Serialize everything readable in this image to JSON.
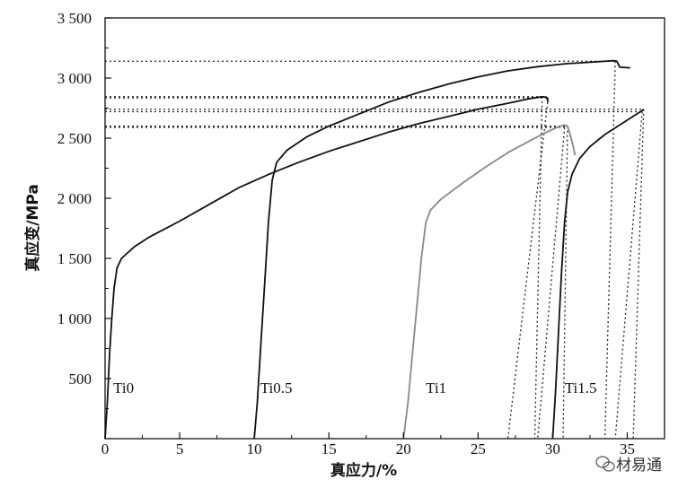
{
  "chart_data": {
    "type": "line",
    "title": "",
    "xlabel": "真应力/%",
    "ylabel": "真应变/MPa",
    "xlim": [
      0,
      37.5
    ],
    "ylim": [
      0,
      3500
    ],
    "x_ticks": [
      0,
      5,
      10,
      15,
      20,
      25,
      30,
      35
    ],
    "x_tick_labels": [
      "0",
      "5",
      "10",
      "15",
      "20",
      "25",
      "30",
      "35"
    ],
    "y_ticks": [
      500,
      1000,
      1500,
      2000,
      2500,
      3000,
      3500
    ],
    "y_tick_labels": [
      "500",
      "1 000",
      "1 500",
      "2 000",
      "2 500",
      "3 000",
      "3 500"
    ],
    "grid": false,
    "series": [
      {
        "name": "Ti0",
        "color": "#111111",
        "label_at": [
          0.55,
          380
        ],
        "points": [
          [
            0,
            0
          ],
          [
            0.15,
            300
          ],
          [
            0.3,
            700
          ],
          [
            0.45,
            1000
          ],
          [
            0.6,
            1250
          ],
          [
            0.8,
            1420
          ],
          [
            1.1,
            1500
          ],
          [
            2,
            1600
          ],
          [
            3,
            1680
          ],
          [
            5,
            1810
          ],
          [
            7,
            1950
          ],
          [
            9,
            2090
          ],
          [
            11,
            2200
          ],
          [
            13,
            2300
          ],
          [
            15,
            2390
          ],
          [
            17,
            2470
          ],
          [
            19,
            2550
          ],
          [
            21,
            2620
          ],
          [
            23,
            2680
          ],
          [
            25,
            2740
          ],
          [
            27,
            2790
          ],
          [
            28.5,
            2830
          ],
          [
            29.3,
            2845
          ],
          [
            29.6,
            2840
          ],
          [
            29.7,
            2800
          ]
        ]
      },
      {
        "name": "Ti0.5",
        "color": "#111111",
        "label_at": [
          10.4,
          380
        ],
        "points": [
          [
            10,
            0
          ],
          [
            10.2,
            300
          ],
          [
            10.45,
            800
          ],
          [
            10.7,
            1300
          ],
          [
            10.95,
            1800
          ],
          [
            11.2,
            2150
          ],
          [
            11.5,
            2300
          ],
          [
            12.2,
            2400
          ],
          [
            13.5,
            2510
          ],
          [
            15,
            2600
          ],
          [
            17,
            2700
          ],
          [
            19,
            2800
          ],
          [
            21,
            2880
          ],
          [
            23,
            2950
          ],
          [
            25,
            3010
          ],
          [
            27,
            3060
          ],
          [
            29,
            3095
          ],
          [
            31,
            3120
          ],
          [
            33,
            3135
          ],
          [
            34.1,
            3145
          ],
          [
            34.3,
            3140
          ],
          [
            34.5,
            3090
          ],
          [
            35.2,
            3085
          ]
        ]
      },
      {
        "name": "Ti1",
        "color": "#888888",
        "label_at": [
          21.5,
          380
        ],
        "points": [
          [
            20,
            0
          ],
          [
            20.3,
            300
          ],
          [
            20.6,
            700
          ],
          [
            20.9,
            1100
          ],
          [
            21.2,
            1500
          ],
          [
            21.5,
            1800
          ],
          [
            21.8,
            1900
          ],
          [
            22.5,
            1990
          ],
          [
            24,
            2130
          ],
          [
            25.5,
            2260
          ],
          [
            27,
            2380
          ],
          [
            28.5,
            2480
          ],
          [
            29.5,
            2545
          ],
          [
            30.3,
            2590
          ],
          [
            30.8,
            2610
          ],
          [
            31,
            2600
          ],
          [
            31.2,
            2520
          ],
          [
            31.4,
            2420
          ],
          [
            31.5,
            2360
          ]
        ]
      },
      {
        "name": "Ti1.5",
        "color": "#111111",
        "label_at": [
          30.8,
          380
        ],
        "points": [
          [
            30,
            0
          ],
          [
            30.2,
            400
          ],
          [
            30.4,
            900
          ],
          [
            30.6,
            1400
          ],
          [
            30.8,
            1800
          ],
          [
            31,
            2050
          ],
          [
            31.3,
            2200
          ],
          [
            31.8,
            2330
          ],
          [
            32.5,
            2430
          ],
          [
            33.5,
            2530
          ],
          [
            34.5,
            2610
          ],
          [
            35.5,
            2690
          ],
          [
            36,
            2730
          ],
          [
            36.1,
            2740
          ]
        ]
      }
    ],
    "reference_lines": [
      {
        "y": 3140,
        "x_from": 0,
        "x_to": 34.2,
        "drop_from": 34.2,
        "drop_to": 33.5
      },
      {
        "y": 2845,
        "x_from": 0,
        "x_to": 29.3,
        "drop_from": 29.3,
        "drop_to": 28.8
      },
      {
        "y": 2835,
        "x_from": 0,
        "x_to": 29.7,
        "drop_from": 29.7,
        "drop_to": 27
      },
      {
        "y": 2740,
        "x_from": 0,
        "x_to": 36.1,
        "drop_from": 36.1,
        "drop_to": 35.4
      },
      {
        "y": 2720,
        "x_from": 0,
        "x_to": 36.0,
        "drop_from": 36.0,
        "drop_to": 34.2
      },
      {
        "y": 2600,
        "x_from": 0,
        "x_to": 31.0,
        "drop_from": 31.0,
        "drop_to": 30.7
      },
      {
        "y": 2590,
        "x_from": 0,
        "x_to": 30.8,
        "drop_from": 30.8,
        "drop_to": 29.0
      }
    ]
  },
  "watermark": {
    "text": "材易通",
    "icon": "wechat-icon"
  }
}
